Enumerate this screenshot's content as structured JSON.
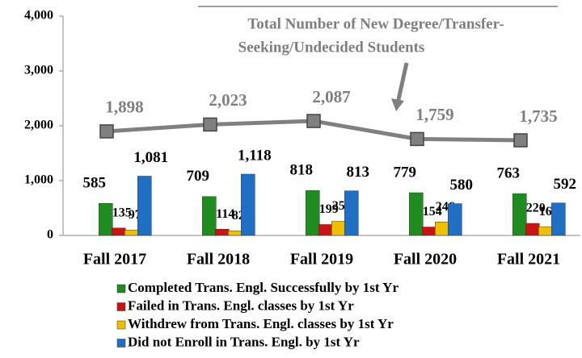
{
  "chart_data": {
    "type": "bar_line",
    "categories": [
      "Fall 2017",
      "Fall 2018",
      "Fall 2019",
      "Fall 2020",
      "Fall 2021"
    ],
    "series": [
      {
        "name": "Completed Trans. Engl. Successfully by 1st Yr",
        "color": "#1e8c1e",
        "values": [
          585,
          709,
          818,
          779,
          763
        ]
      },
      {
        "name": "Failed in Trans. Engl. classes by 1st Yr",
        "color": "#c81414",
        "values": [
          135,
          114,
          199,
          154,
          220
        ]
      },
      {
        "name": "Withdrew from Trans. Engl. classes by 1st Yr",
        "color": "#f0c000",
        "values": [
          97,
          82,
          257,
          246,
          160
        ]
      },
      {
        "name": "Did not Enroll in Trans. Engl. by 1st Yr",
        "color": "#1f6fc5",
        "values": [
          1081,
          1118,
          813,
          580,
          592
        ],
        "value_labels": [
          "1,081",
          "1,118",
          "813",
          "580",
          "592"
        ]
      }
    ],
    "line": {
      "color": "#808080",
      "values": [
        1898,
        2023,
        2087,
        1759,
        1735
      ],
      "value_labels": [
        "1,898",
        "2,023",
        "2,087",
        "1,759",
        "1,735"
      ]
    },
    "annotation": [
      "Total Number of New Degree/Transfer-",
      "Seeking/Undecided Students"
    ],
    "ylim": [
      0,
      4000
    ],
    "yticks": [
      0,
      {
        "value": 1000,
        "label": "1,000"
      },
      {
        "value": 2000,
        "label": "2,000"
      },
      {
        "value": 3000,
        "label": "3,000"
      },
      {
        "value": 4000,
        "label": "4,000"
      }
    ]
  }
}
